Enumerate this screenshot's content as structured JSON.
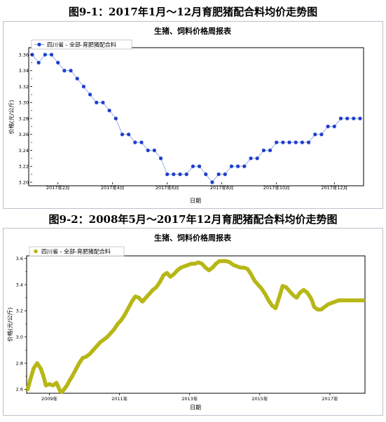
{
  "figures": [
    {
      "title": "图9-1：2017年1月～12月育肥猪配合料均价走势图"
    },
    {
      "title": "图9-2：2008年5月～2017年12月育肥猪配合料均价走势图"
    }
  ],
  "chart_data": [
    {
      "type": "line",
      "title": "生猪、饲料价格周报表",
      "xlabel": "日期",
      "ylabel": "价格(元/公斤)",
      "ylim": [
        3.2,
        3.36
      ],
      "yticks": [
        3.2,
        3.22,
        3.24,
        3.26,
        3.28,
        3.3,
        3.32,
        3.34,
        3.36
      ],
      "ytick_labels": [
        "3.20",
        "3.22",
        "3.24",
        "3.26",
        "3.28",
        "3.30",
        "3.32",
        "3.34",
        "3.36"
      ],
      "xlim": [
        1,
        52
      ],
      "xticks": [
        5,
        13.5,
        22,
        30.5,
        39,
        48
      ],
      "xtick_labels": [
        "2017年2月",
        "2017年4月",
        "2017年6月",
        "2017年8月",
        "2017年10月",
        "2017年12月"
      ],
      "grid": false,
      "legend_position": "top-left",
      "marker_color": "#1e3fce",
      "line_color": "#8aa3e8",
      "series": [
        {
          "name": "四川省 - 全部-育肥猪配合料",
          "x": [
            1,
            2,
            3,
            4,
            5,
            6,
            7,
            8,
            9,
            10,
            11,
            12,
            13,
            14,
            15,
            16,
            17,
            18,
            19,
            20,
            21,
            22,
            23,
            24,
            25,
            26,
            27,
            28,
            29,
            30,
            31,
            32,
            33,
            34,
            35,
            36,
            37,
            38,
            39,
            40,
            41,
            42,
            43,
            44,
            45,
            46,
            47,
            48,
            49,
            50,
            51,
            52
          ],
          "values": [
            3.36,
            3.35,
            3.36,
            3.36,
            3.35,
            3.34,
            3.34,
            3.33,
            3.32,
            3.31,
            3.3,
            3.3,
            3.29,
            3.28,
            3.26,
            3.26,
            3.25,
            3.25,
            3.24,
            3.24,
            3.23,
            3.21,
            3.21,
            3.21,
            3.21,
            3.22,
            3.22,
            3.21,
            3.2,
            3.21,
            3.21,
            3.22,
            3.22,
            3.22,
            3.23,
            3.23,
            3.24,
            3.24,
            3.25,
            3.25,
            3.25,
            3.25,
            3.25,
            3.25,
            3.26,
            3.26,
            3.27,
            3.27,
            3.28,
            3.28,
            3.28,
            3.28
          ]
        }
      ]
    },
    {
      "type": "scatter",
      "title": "生猪、饲料价格周报表",
      "xlabel": "日期",
      "ylabel": "价格(元/公斤)",
      "ylim": [
        2.57,
        3.62
      ],
      "yticks": [
        2.6,
        2.8,
        3.0,
        3.2,
        3.4,
        3.6
      ],
      "ytick_labels": [
        "2.6",
        "2.8",
        "3.0",
        "3.2",
        "3.4",
        "3.6"
      ],
      "xlim": [
        2008.35,
        2018.0
      ],
      "xticks": [
        2009,
        2011,
        2013,
        2015,
        2017
      ],
      "xtick_labels": [
        "2009年",
        "2011年",
        "2013年",
        "2015年",
        "2017年"
      ],
      "grid": false,
      "legend_position": "top-left",
      "marker_color": "#b7b717",
      "series": [
        {
          "name": "四川省 - 全部-育肥猪配合料",
          "x": [
            2008.38,
            2008.45,
            2008.55,
            2008.65,
            2008.75,
            2008.82,
            2008.9,
            2009.0,
            2009.1,
            2009.2,
            2009.3,
            2009.35,
            2009.42,
            2009.5,
            2009.58,
            2009.65,
            2009.75,
            2009.85,
            2009.95,
            2010.05,
            2010.15,
            2010.25,
            2010.35,
            2010.45,
            2010.55,
            2010.65,
            2010.75,
            2010.85,
            2010.95,
            2011.05,
            2011.15,
            2011.25,
            2011.35,
            2011.45,
            2011.55,
            2011.65,
            2011.75,
            2011.85,
            2011.95,
            2012.05,
            2012.15,
            2012.25,
            2012.35,
            2012.45,
            2012.55,
            2012.65,
            2012.75,
            2012.85,
            2012.95,
            2013.05,
            2013.15,
            2013.25,
            2013.35,
            2013.45,
            2013.55,
            2013.65,
            2013.75,
            2013.85,
            2013.95,
            2014.05,
            2014.15,
            2014.25,
            2014.35,
            2014.45,
            2014.55,
            2014.65,
            2014.75,
            2014.85,
            2014.95,
            2015.05,
            2015.15,
            2015.25,
            2015.35,
            2015.45,
            2015.55,
            2015.65,
            2015.75,
            2015.85,
            2015.95,
            2016.05,
            2016.15,
            2016.25,
            2016.35,
            2016.45,
            2016.5,
            2016.55,
            2016.65,
            2016.75,
            2016.85,
            2016.95,
            2017.05,
            2017.15,
            2017.25,
            2017.35,
            2017.45,
            2017.55,
            2017.65,
            2017.75,
            2017.85,
            2017.95
          ],
          "values": [
            2.6,
            2.67,
            2.76,
            2.8,
            2.76,
            2.71,
            2.63,
            2.64,
            2.63,
            2.65,
            2.59,
            2.58,
            2.6,
            2.63,
            2.67,
            2.7,
            2.75,
            2.8,
            2.84,
            2.85,
            2.87,
            2.9,
            2.93,
            2.96,
            2.98,
            3.0,
            3.03,
            3.06,
            3.1,
            3.13,
            3.17,
            3.22,
            3.27,
            3.31,
            3.3,
            3.27,
            3.3,
            3.33,
            3.36,
            3.38,
            3.42,
            3.47,
            3.49,
            3.46,
            3.48,
            3.51,
            3.53,
            3.54,
            3.55,
            3.56,
            3.56,
            3.57,
            3.56,
            3.53,
            3.51,
            3.53,
            3.56,
            3.58,
            3.58,
            3.58,
            3.57,
            3.55,
            3.54,
            3.53,
            3.53,
            3.52,
            3.48,
            3.43,
            3.4,
            3.37,
            3.33,
            3.28,
            3.24,
            3.22,
            3.3,
            3.39,
            3.38,
            3.35,
            3.32,
            3.3,
            3.34,
            3.36,
            3.34,
            3.3,
            3.27,
            3.23,
            3.21,
            3.21,
            3.23,
            3.25,
            3.26,
            3.27,
            3.28,
            3.28,
            3.28,
            3.28,
            3.28,
            3.28,
            3.28,
            3.28
          ]
        }
      ]
    }
  ]
}
